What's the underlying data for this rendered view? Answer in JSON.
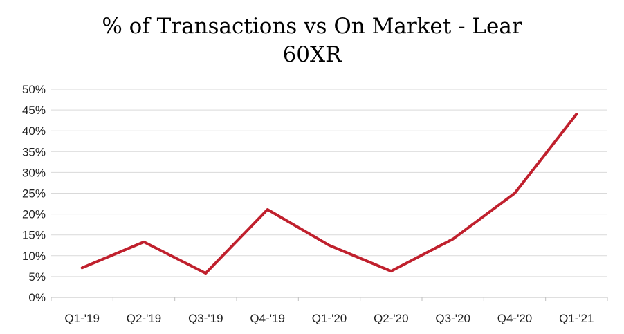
{
  "chart_data": {
    "type": "line",
    "title_line1": "% of Transactions vs On Market - Lear",
    "title_line2": "60XR",
    "categories": [
      "Q1-'19",
      "Q2-'19",
      "Q3-'19",
      "Q4-'19",
      "Q1-'20",
      "Q2-'20",
      "Q3-'20",
      "Q4-'20",
      "Q1-'21"
    ],
    "series": [
      {
        "values": [
          7.1,
          13.3,
          5.8,
          21.1,
          12.5,
          6.3,
          14.0,
          25.0,
          44.0
        ],
        "color": "#c0202d"
      }
    ],
    "ylim": [
      0,
      50
    ],
    "yticks": [
      "0%",
      "5%",
      "10%",
      "15%",
      "20%",
      "25%",
      "30%",
      "35%",
      "40%",
      "45%",
      "50%"
    ],
    "xlabel": "",
    "ylabel": "",
    "grid": true,
    "legend": "none"
  }
}
